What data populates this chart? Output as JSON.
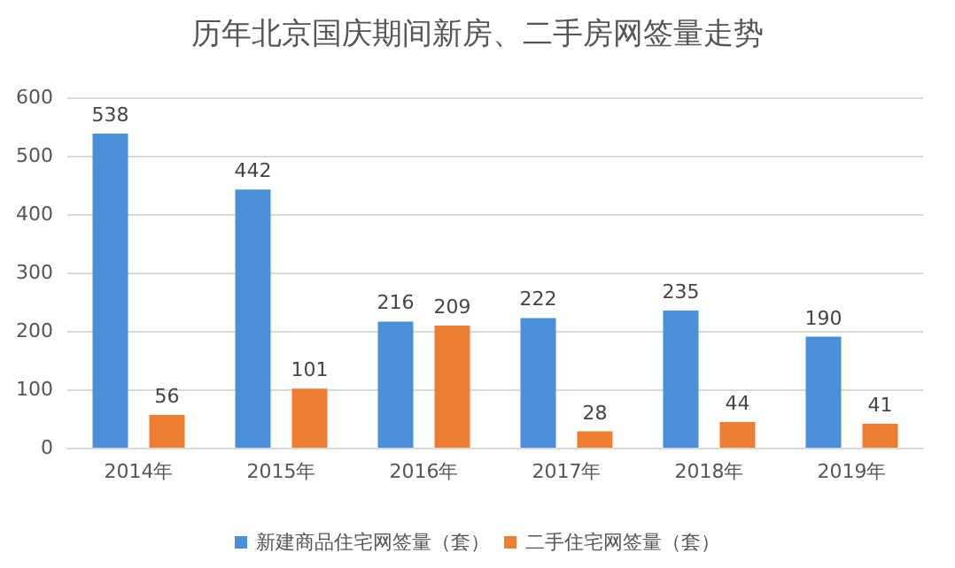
{
  "chart_data": {
    "type": "bar",
    "title": "历年北京国庆期间新房、二手房网签量走势",
    "categories": [
      "2014年",
      "2015年",
      "2016年",
      "2017年",
      "2018年",
      "2019年"
    ],
    "series": [
      {
        "name": "新建商品住宅网签量（套）",
        "color": "#4a90d9",
        "values": [
          538,
          442,
          216,
          222,
          235,
          190
        ]
      },
      {
        "name": "二手住宅网签量（套）",
        "color": "#ed7d31",
        "values": [
          56,
          101,
          209,
          28,
          44,
          41
        ]
      }
    ],
    "ylim": [
      0,
      600
    ],
    "yticks": [
      0,
      100,
      200,
      300,
      400,
      500,
      600
    ],
    "grid": "y",
    "legend": "bottom",
    "data_labels": true
  }
}
